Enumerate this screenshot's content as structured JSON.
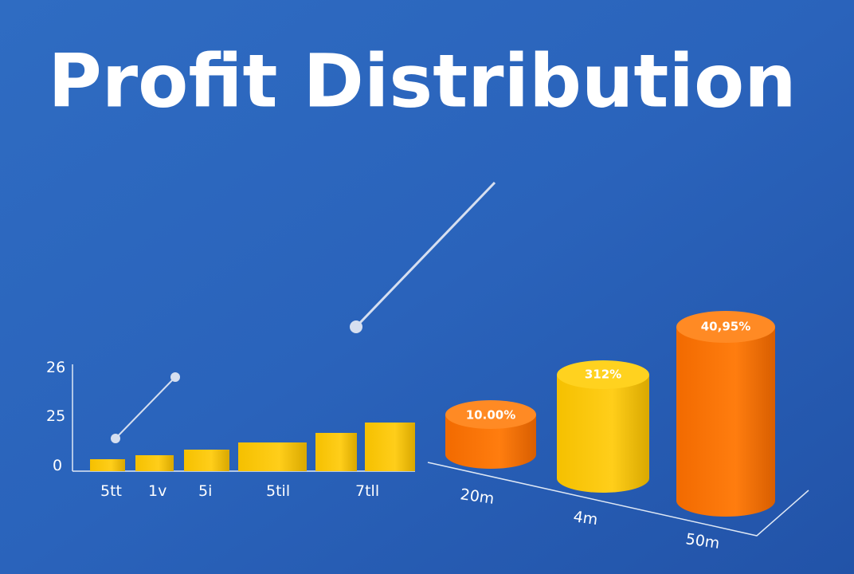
{
  "title": "Profit Distribution",
  "left_panel": {
    "y_labels": [
      "26",
      "25",
      "0"
    ],
    "x_labels": [
      "5tt",
      "1v",
      "5i",
      "5til",
      "7tll"
    ]
  },
  "right_panel": {
    "cylinder_labels": [
      "10.00%",
      "312%",
      "40,95%"
    ],
    "axis_labels": [
      "20m",
      "4m",
      "50m"
    ]
  }
}
